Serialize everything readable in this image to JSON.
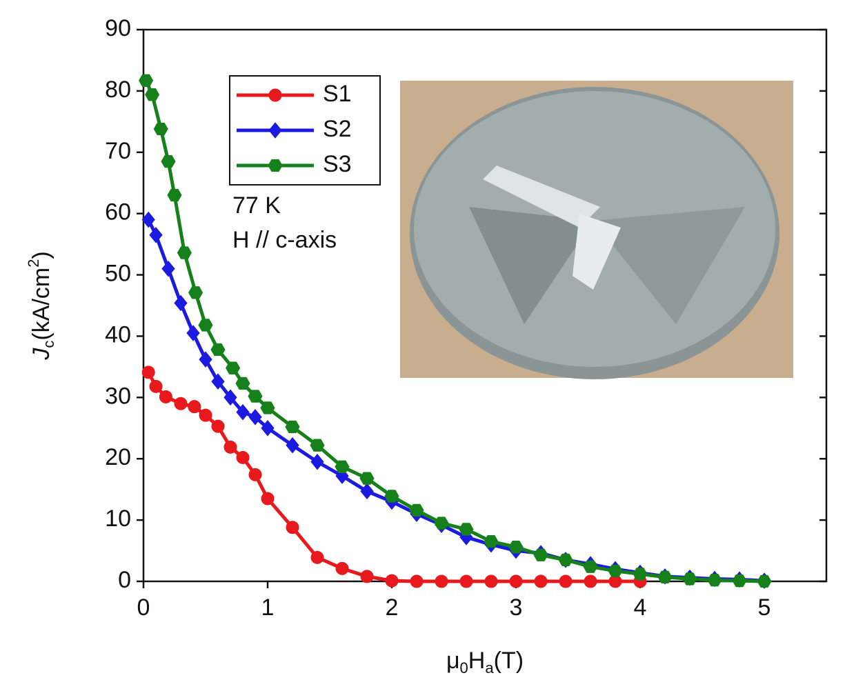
{
  "chart_data": {
    "type": "line",
    "x_label": {
      "mu": "μ",
      "sub0": "0",
      "h": "H",
      "suba": "a",
      "unit": "(T)"
    },
    "y_label": {
      "j": "J",
      "subc": "c",
      "unit": "(kA/cm",
      "sup": "2",
      "close": ")"
    },
    "annotations": [
      "77 K",
      "H // c-axis"
    ],
    "xlim": [
      0,
      5.5
    ],
    "ylim": [
      0,
      90
    ],
    "xticks": [
      0,
      1,
      2,
      3,
      4,
      5
    ],
    "yticks": [
      0,
      10,
      20,
      30,
      40,
      50,
      60,
      70,
      80,
      90
    ],
    "series": [
      {
        "name": "S1",
        "color": "#e8191c",
        "marker": "circle",
        "x": [
          0.04,
          0.1,
          0.18,
          0.3,
          0.41,
          0.5,
          0.6,
          0.7,
          0.8,
          0.9,
          1.0,
          1.2,
          1.4,
          1.6,
          1.8,
          2.0,
          2.2,
          2.4,
          2.6,
          2.8,
          3.0,
          3.2,
          3.4,
          3.6,
          3.8,
          4.0
        ],
        "values": [
          34.1,
          31.8,
          30.1,
          29,
          28.5,
          27.1,
          25.3,
          21.9,
          20.2,
          17.4,
          13.5,
          8.8,
          3.9,
          2.1,
          0.8,
          0.1,
          0,
          0,
          0,
          0,
          0,
          0,
          0,
          0,
          0,
          0
        ]
      },
      {
        "name": "S2",
        "color": "#1a1ae0",
        "marker": "diamond",
        "x": [
          0.04,
          0.1,
          0.2,
          0.3,
          0.4,
          0.5,
          0.6,
          0.7,
          0.8,
          0.9,
          1.0,
          1.2,
          1.4,
          1.6,
          1.8,
          2.0,
          2.2,
          2.4,
          2.6,
          2.8,
          3.0,
          3.2,
          3.4,
          3.6,
          3.8,
          4.0,
          4.2,
          4.4,
          4.6,
          4.8,
          5.0
        ],
        "values": [
          59,
          56.5,
          51,
          45.4,
          40.5,
          36.2,
          32.6,
          30,
          27.6,
          26.8,
          25,
          22.2,
          19.5,
          17.2,
          14.7,
          13,
          11,
          9.2,
          7.2,
          6,
          5,
          4.6,
          3.5,
          2.8,
          2,
          1.4,
          0.8,
          0.6,
          0.4,
          0.3,
          0.1
        ]
      },
      {
        "name": "S3",
        "color": "#16801a",
        "marker": "hexagon",
        "x": [
          0.02,
          0.07,
          0.14,
          0.2,
          0.25,
          0.33,
          0.42,
          0.5,
          0.6,
          0.72,
          0.8,
          0.9,
          1.0,
          1.2,
          1.4,
          1.6,
          1.8,
          2.0,
          2.2,
          2.4,
          2.6,
          2.8,
          3.0,
          3.2,
          3.4,
          3.6,
          3.8,
          4.0,
          4.2,
          4.4,
          4.6,
          4.8,
          5.0
        ],
        "values": [
          81.7,
          79.4,
          73.8,
          68.5,
          63,
          53.6,
          47.1,
          41.8,
          37.8,
          34.8,
          32.3,
          30.2,
          28.3,
          25.2,
          22.2,
          18.7,
          16.8,
          13.9,
          11.6,
          9.5,
          8.5,
          6.5,
          5.6,
          4.3,
          3.5,
          2.4,
          1.7,
          1.2,
          0.7,
          0.4,
          0.2,
          0.1,
          0
        ]
      }
    ]
  }
}
